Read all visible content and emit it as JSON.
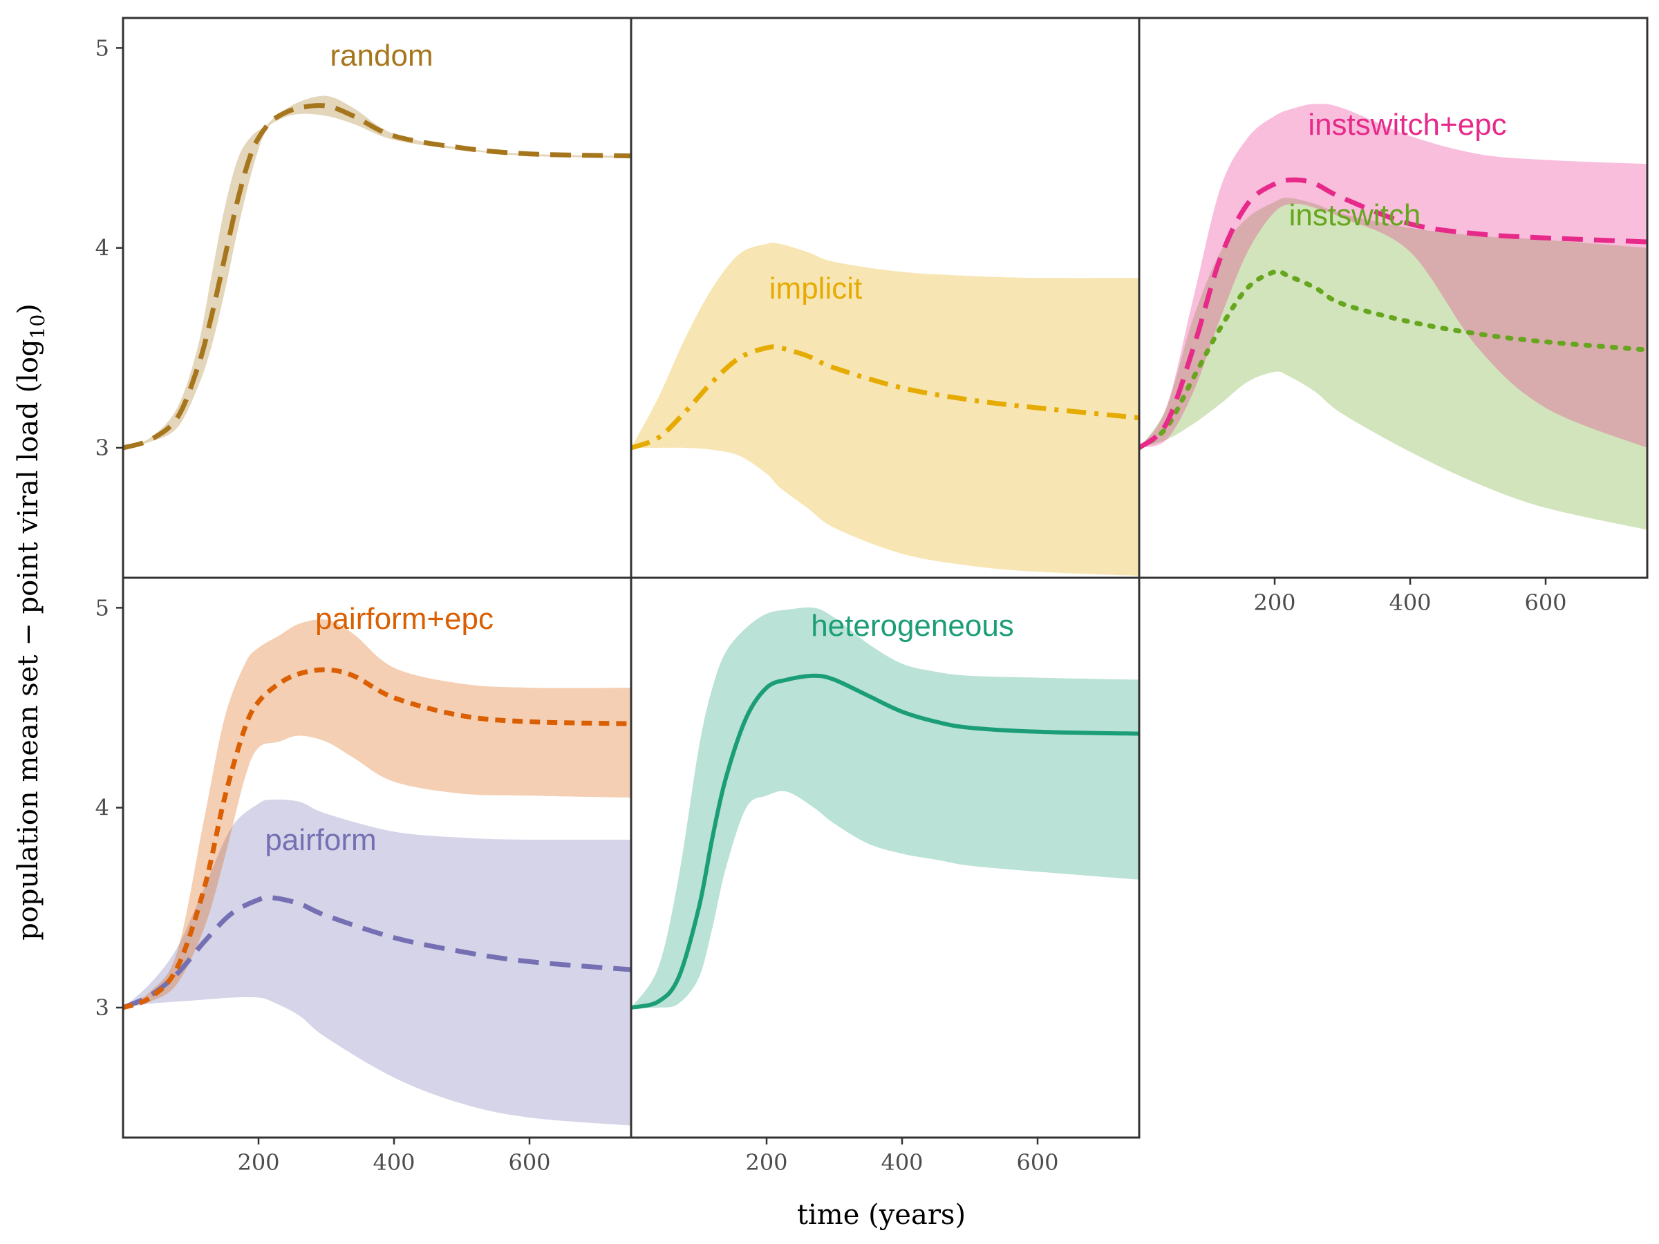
{
  "chart_data": {
    "type": "line",
    "xlabel": "time (years)",
    "ylabel": "population mean set − point viral load (log",
    "ylabel_subscript": "10",
    "ylabel_close": ")",
    "xlim": [
      0,
      750
    ],
    "ylim": [
      2.35,
      5.15
    ],
    "x_ticks": [
      200,
      400,
      600
    ],
    "y_ticks": [
      3,
      4,
      5
    ],
    "grid": false,
    "panels": [
      {
        "series": [
          {
            "name": "random",
            "color": "#A6761D",
            "dash": "long-dash",
            "x": [
              0,
              40,
              80,
              110,
              130,
              150,
              170,
              190,
              210,
              230,
              260,
              300,
              340,
              400,
              500,
              600,
              750
            ],
            "mean": [
              3.0,
              3.04,
              3.15,
              3.4,
              3.65,
              3.95,
              4.25,
              4.48,
              4.6,
              4.66,
              4.7,
              4.71,
              4.66,
              4.56,
              4.5,
              4.47,
              4.46
            ],
            "upper": [
              3.0,
              3.05,
              3.2,
              3.5,
              3.85,
              4.2,
              4.45,
              4.56,
              4.61,
              4.67,
              4.73,
              4.76,
              4.7,
              4.57,
              4.5,
              4.47,
              4.46
            ],
            "lower": [
              3.0,
              3.03,
              3.1,
              3.3,
              3.5,
              3.78,
              4.1,
              4.38,
              4.58,
              4.64,
              4.67,
              4.66,
              4.62,
              4.54,
              4.49,
              4.46,
              4.45
            ]
          }
        ]
      },
      {
        "series": [
          {
            "name": "implicit",
            "color": "#E6AB02",
            "dash": "dash-dot",
            "x": [
              0,
              40,
              80,
              120,
              160,
              200,
              220,
              260,
              300,
              400,
              500,
              600,
              750
            ],
            "mean": [
              3.0,
              3.05,
              3.18,
              3.33,
              3.45,
              3.5,
              3.5,
              3.46,
              3.4,
              3.3,
              3.24,
              3.2,
              3.15
            ],
            "upper": [
              3.0,
              3.25,
              3.55,
              3.8,
              3.97,
              4.02,
              4.02,
              3.98,
              3.93,
              3.88,
              3.86,
              3.85,
              3.85
            ],
            "lower": [
              3.0,
              3.0,
              3.0,
              2.99,
              2.96,
              2.87,
              2.8,
              2.7,
              2.6,
              2.47,
              2.41,
              2.38,
              2.36
            ]
          }
        ]
      },
      {
        "series": [
          {
            "name": "instswitch",
            "color": "#66A61E",
            "dash": "dotted",
            "x": [
              0,
              40,
              80,
              120,
              160,
              200,
              220,
              260,
              300,
              400,
              500,
              600,
              750
            ],
            "mean": [
              3.0,
              3.1,
              3.35,
              3.6,
              3.8,
              3.88,
              3.86,
              3.8,
              3.72,
              3.63,
              3.57,
              3.53,
              3.49
            ],
            "upper": [
              3.0,
              3.2,
              3.65,
              3.98,
              4.15,
              4.23,
              4.25,
              4.22,
              4.17,
              4.1,
              4.06,
              4.04,
              4.0
            ],
            "lower": [
              3.0,
              3.04,
              3.12,
              3.22,
              3.33,
              3.38,
              3.36,
              3.28,
              3.17,
              2.98,
              2.82,
              2.7,
              2.59
            ]
          },
          {
            "name": "instswitch+epc",
            "color": "#E7298A",
            "dash": "long-dash",
            "x": [
              0,
              40,
              80,
              120,
              160,
              200,
              230,
              260,
              300,
              400,
              500,
              600,
              750
            ],
            "mean": [
              3.0,
              3.12,
              3.5,
              3.95,
              4.22,
              4.32,
              4.34,
              4.32,
              4.25,
              4.12,
              4.07,
              4.05,
              4.03
            ],
            "upper": [
              3.0,
              3.2,
              3.75,
              4.3,
              4.55,
              4.66,
              4.7,
              4.72,
              4.7,
              4.56,
              4.47,
              4.44,
              4.42
            ],
            "lower": [
              3.0,
              3.04,
              3.28,
              3.65,
              3.98,
              4.18,
              4.22,
              4.2,
              4.15,
              3.98,
              3.5,
              3.2,
              3.0
            ]
          }
        ]
      },
      {
        "series": [
          {
            "name": "pairform",
            "color": "#7570B3",
            "dash": "long-dash",
            "x": [
              0,
              40,
              80,
              120,
              160,
              200,
              220,
              260,
              300,
              400,
              500,
              600,
              750
            ],
            "mean": [
              3.0,
              3.06,
              3.17,
              3.33,
              3.47,
              3.54,
              3.55,
              3.52,
              3.46,
              3.35,
              3.28,
              3.23,
              3.19
            ],
            "upper": [
              3.0,
              3.12,
              3.3,
              3.6,
              3.9,
              4.02,
              4.04,
              4.03,
              3.97,
              3.88,
              3.85,
              3.84,
              3.84
            ],
            "lower": [
              3.0,
              3.02,
              3.03,
              3.04,
              3.05,
              3.05,
              3.03,
              2.96,
              2.85,
              2.65,
              2.52,
              2.45,
              2.41
            ]
          },
          {
            "name": "pairform+epc",
            "color": "#D95F02",
            "dash": "short-dash",
            "x": [
              0,
              40,
              80,
              120,
              150,
              180,
              200,
              230,
              260,
              300,
              340,
              400,
              500,
              600,
              750
            ],
            "mean": [
              3.0,
              3.05,
              3.2,
              3.6,
              4.05,
              4.4,
              4.53,
              4.62,
              4.67,
              4.69,
              4.66,
              4.55,
              4.46,
              4.43,
              4.42
            ],
            "upper": [
              3.0,
              3.08,
              3.28,
              3.95,
              4.45,
              4.72,
              4.8,
              4.86,
              4.92,
              4.94,
              4.87,
              4.7,
              4.62,
              4.6,
              4.6
            ],
            "lower": [
              3.0,
              3.03,
              3.12,
              3.4,
              3.75,
              4.15,
              4.3,
              4.33,
              4.36,
              4.33,
              4.25,
              4.13,
              4.07,
              4.06,
              4.05
            ]
          }
        ]
      },
      {
        "series": [
          {
            "name": "heterogeneous",
            "color": "#1B9E77",
            "dash": "solid",
            "x": [
              0,
              40,
              70,
              100,
              120,
              140,
              170,
              200,
              230,
              270,
              300,
              350,
              400,
              450,
              500,
              600,
              750
            ],
            "mean": [
              3.0,
              3.03,
              3.15,
              3.5,
              3.85,
              4.15,
              4.45,
              4.6,
              4.64,
              4.66,
              4.64,
              4.56,
              4.48,
              4.43,
              4.4,
              4.38,
              4.37
            ],
            "upper": [
              3.0,
              3.2,
              3.65,
              4.3,
              4.6,
              4.78,
              4.9,
              4.97,
              4.99,
              5.0,
              4.95,
              4.82,
              4.72,
              4.68,
              4.66,
              4.65,
              4.64
            ],
            "lower": [
              3.0,
              3.0,
              3.02,
              3.15,
              3.4,
              3.7,
              4.0,
              4.06,
              4.08,
              4.0,
              3.92,
              3.82,
              3.77,
              3.74,
              3.71,
              3.68,
              3.64
            ]
          }
        ]
      }
    ]
  }
}
